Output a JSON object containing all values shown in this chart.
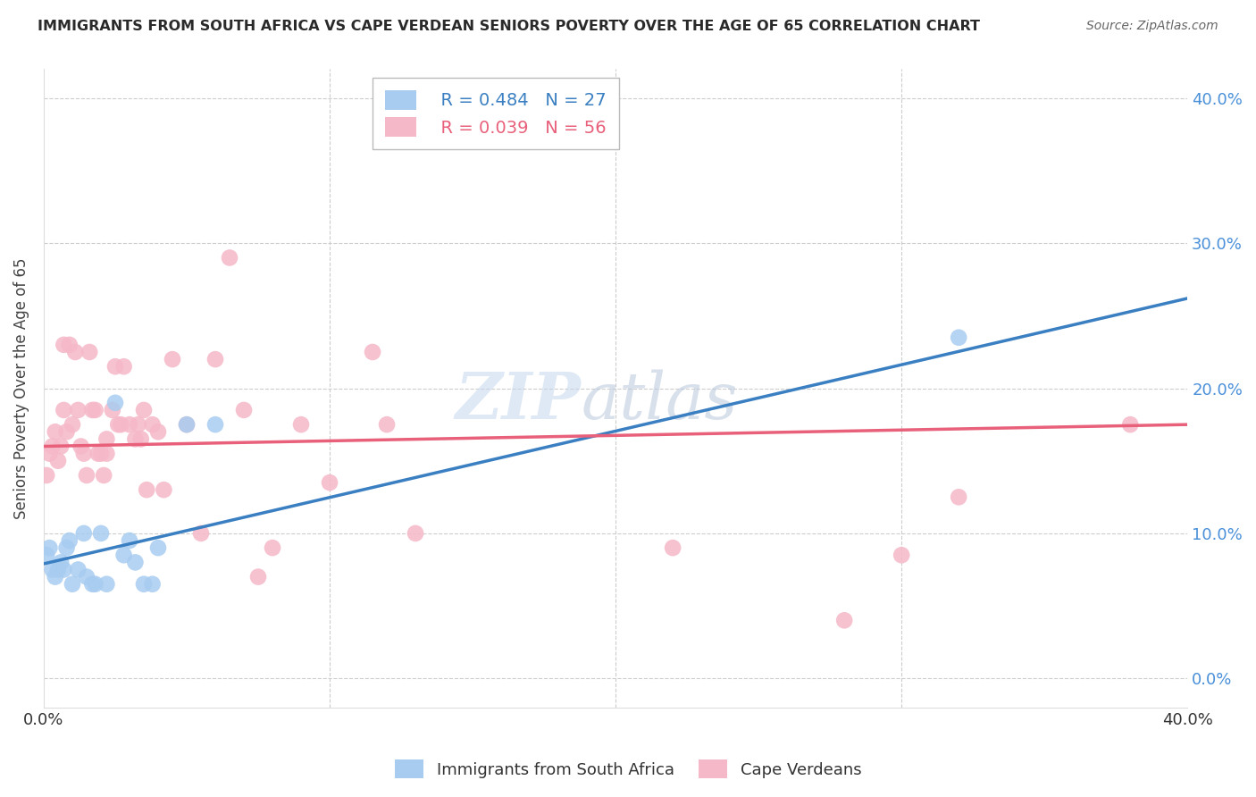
{
  "title": "IMMIGRANTS FROM SOUTH AFRICA VS CAPE VERDEAN SENIORS POVERTY OVER THE AGE OF 65 CORRELATION CHART",
  "source": "Source: ZipAtlas.com",
  "ylabel": "Seniors Poverty Over the Age of 65",
  "xlim": [
    0.0,
    0.4
  ],
  "ylim": [
    -0.02,
    0.42
  ],
  "ytick_values": [
    0.0,
    0.1,
    0.2,
    0.3,
    0.4
  ],
  "xtick_values": [
    0.0,
    0.1,
    0.2,
    0.3,
    0.4
  ],
  "blue_R": "0.484",
  "blue_N": "27",
  "pink_R": "0.039",
  "pink_N": "56",
  "blue_color": "#A8CCF0",
  "pink_color": "#F5B8C8",
  "blue_line_color": "#3A7FC1",
  "pink_line_color": "#E8607A",
  "blue_label_color": "#4A90D9",
  "watermark_zip": "#C8DCF0",
  "watermark_atlas": "#D0D8E8",
  "blue_points_x": [
    0.001,
    0.002,
    0.003,
    0.004,
    0.005,
    0.006,
    0.007,
    0.008,
    0.009,
    0.01,
    0.012,
    0.014,
    0.015,
    0.017,
    0.018,
    0.02,
    0.022,
    0.025,
    0.028,
    0.03,
    0.032,
    0.035,
    0.038,
    0.04,
    0.05,
    0.06,
    0.32
  ],
  "blue_points_y": [
    0.085,
    0.09,
    0.075,
    0.07,
    0.075,
    0.08,
    0.075,
    0.09,
    0.095,
    0.065,
    0.075,
    0.1,
    0.07,
    0.065,
    0.065,
    0.1,
    0.065,
    0.19,
    0.085,
    0.095,
    0.08,
    0.065,
    0.065,
    0.09,
    0.175,
    0.175,
    0.235
  ],
  "pink_points_x": [
    0.001,
    0.002,
    0.003,
    0.004,
    0.005,
    0.006,
    0.007,
    0.007,
    0.008,
    0.009,
    0.01,
    0.011,
    0.012,
    0.013,
    0.014,
    0.015,
    0.016,
    0.017,
    0.018,
    0.019,
    0.02,
    0.021,
    0.022,
    0.022,
    0.024,
    0.025,
    0.026,
    0.027,
    0.028,
    0.03,
    0.032,
    0.033,
    0.034,
    0.035,
    0.036,
    0.038,
    0.04,
    0.042,
    0.045,
    0.05,
    0.055,
    0.06,
    0.065,
    0.07,
    0.075,
    0.08,
    0.09,
    0.1,
    0.115,
    0.12,
    0.13,
    0.22,
    0.28,
    0.3,
    0.32,
    0.38
  ],
  "pink_points_y": [
    0.14,
    0.155,
    0.16,
    0.17,
    0.15,
    0.16,
    0.23,
    0.185,
    0.17,
    0.23,
    0.175,
    0.225,
    0.185,
    0.16,
    0.155,
    0.14,
    0.225,
    0.185,
    0.185,
    0.155,
    0.155,
    0.14,
    0.155,
    0.165,
    0.185,
    0.215,
    0.175,
    0.175,
    0.215,
    0.175,
    0.165,
    0.175,
    0.165,
    0.185,
    0.13,
    0.175,
    0.17,
    0.13,
    0.22,
    0.175,
    0.1,
    0.22,
    0.29,
    0.185,
    0.07,
    0.09,
    0.175,
    0.135,
    0.225,
    0.175,
    0.1,
    0.09,
    0.04,
    0.085,
    0.125,
    0.175
  ],
  "blue_trend_x": [
    0.0,
    0.4
  ],
  "blue_trend_y_start": 0.079,
  "blue_trend_y_end": 0.262,
  "pink_trend_x": [
    0.0,
    0.4
  ],
  "pink_trend_y_start": 0.16,
  "pink_trend_y_end": 0.175
}
